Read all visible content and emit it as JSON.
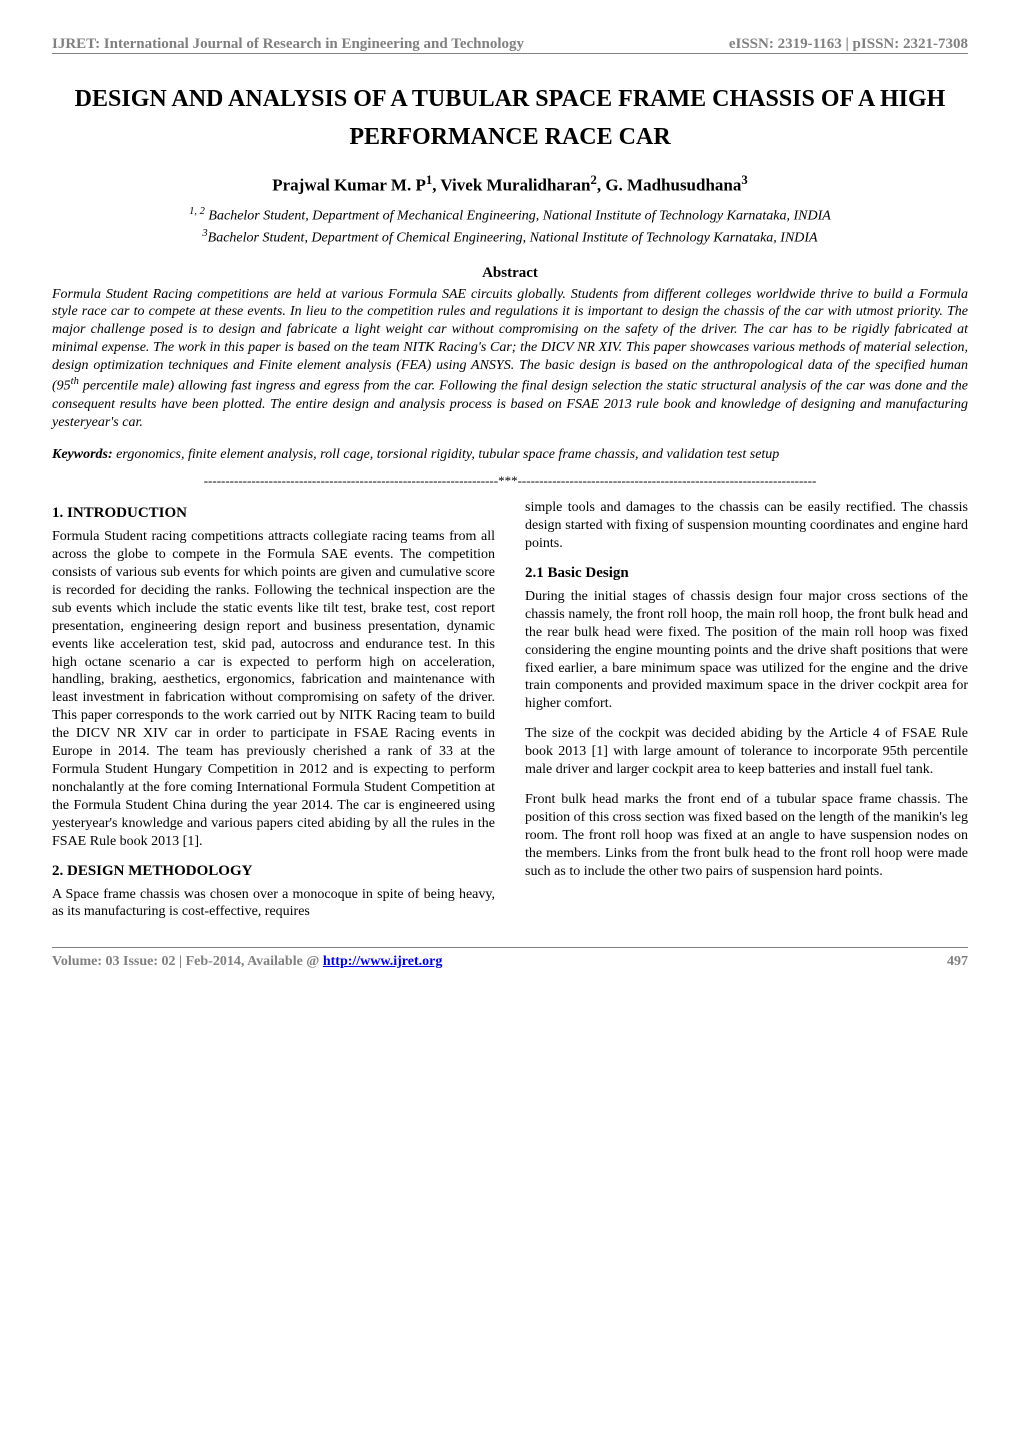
{
  "journal": {
    "name": "IJRET: International Journal of Research in Engineering and Technology",
    "issn": "eISSN: 2319-1163 | pISSN: 2321-7308",
    "header_color": "#808080",
    "header_fontsize": 15
  },
  "paper": {
    "title": "DESIGN AND ANALYSIS OF A TUBULAR SPACE FRAME CHASSIS OF A HIGH PERFORMANCE RACE CAR",
    "title_fontsize": 24,
    "authors_html": "Prajwal Kumar M. P<sup>1</sup>, Vivek Muralidharan<sup>2</sup>, G. Madhusudhana<sup>3</sup>",
    "affiliations_html": "<sup>1, 2</sup> Bachelor Student, Department of Mechanical Engineering, National Institute of Technology Karnataka, INDIA<br><sup>3</sup>Bachelor Student, Department of Chemical Engineering, National Institute of Technology Karnataka, INDIA"
  },
  "abstract": {
    "heading": "Abstract",
    "body_html": "Formula Student Racing competitions are held at various Formula SAE circuits globally. Students from different colleges worldwide thrive to build a Formula style race car to compete at these events. In lieu to the competition rules and regulations it is important to design the chassis of the car with utmost priority. The major challenge posed is to design and fabricate a light weight car without compromising on the safety of the driver. The car has to be rigidly fabricated at minimal expense. The work in this paper is based on the team NITK Racing's Car; the DICV NR XIV.  This paper showcases various methods of material selection, design optimization techniques and Finite element analysis (FEA) using ANSYS. The basic design is based on the anthropological data of the specified human (95<sup>th</sup> percentile male) allowing fast ingress and egress from the car. Following the final design selection the static structural analysis of the car was done and the consequent results have been plotted. The entire design and analysis process is based on FSAE 2013 rule book and knowledge of designing and manufacturing yesteryear's car."
  },
  "keywords": {
    "label": "Keywords:",
    "text": " ergonomics, finite element analysis, roll cage, torsional rigidity, tubular space frame chassis, and validation test setup"
  },
  "separator": "--------------------------------------------------------------------***---------------------------------------------------------------------",
  "sections": {
    "s1": {
      "heading": "1. INTRODUCTION",
      "p1": "Formula Student racing competitions attracts collegiate racing teams from all across the globe to compete in the Formula SAE events. The competition consists of various sub events for which points are given and cumulative score is recorded for deciding the ranks. Following the technical inspection are the sub events which include the static events like tilt test, brake test, cost report presentation, engineering design report and business presentation, dynamic events like acceleration test, skid pad, autocross and endurance test. In this high octane scenario a car is expected to perform high on acceleration, handling, braking, aesthetics, ergonomics, fabrication and maintenance with least investment in fabrication without compromising on safety of the driver. This paper corresponds to the work carried out by NITK Racing team to build the DICV NR XIV car in order to participate in FSAE Racing events in Europe in 2014. The team has previously cherished a rank of 33 at the Formula Student Hungary Competition in 2012 and is expecting to perform nonchalantly at the fore coming International Formula Student Competition at the Formula Student China during the year 2014. The car is engineered using yesteryear's knowledge and various papers cited abiding by all the rules in the FSAE Rule book 2013 [1]."
    },
    "s2": {
      "heading": "2. DESIGN METHODOLOGY",
      "p1": "A Space frame chassis was chosen over a monocoque in spite of being heavy, as its manufacturing is cost-effective, requires"
    },
    "col2_intro": {
      "p1": "simple tools and damages to the chassis can be easily rectified. The chassis design started with fixing of suspension mounting coordinates and engine hard points."
    },
    "s21": {
      "heading": "2.1 Basic Design",
      "p1": "During the initial stages of chassis design four major cross sections of the chassis namely, the front roll hoop, the main roll hoop, the front bulk head and the rear bulk head were fixed. The position of the main roll hoop was fixed considering the engine mounting points and the drive shaft positions that were fixed earlier, a bare minimum space was utilized for the engine and the drive train components and provided maximum space in the driver cockpit area for higher comfort.",
      "p2": "The size of the cockpit was decided abiding by the Article 4 of FSAE Rule book 2013 [1] with large amount of tolerance to incorporate 95th percentile male driver and larger cockpit area to keep batteries and install fuel tank.",
      "p3": "Front bulk head marks the front end of a tubular space frame chassis. The position of this cross section was fixed based on the length of the manikin's leg room. The front roll hoop was fixed at an angle to have suspension nodes on the members. Links from the front bulk head to the front roll hoop were made such as to include the other two pairs of suspension hard points."
    }
  },
  "footer": {
    "issue_text": "Volume: 03 Issue: 02 | Feb-2014, Available @ ",
    "url_text": "http://www.ijret.org",
    "page_number": "497",
    "color": "#808080",
    "link_color": "#0000ee"
  },
  "style": {
    "body_font": "Times New Roman",
    "body_fontsize": 14,
    "background_color": "#ffffff",
    "text_color": "#000000",
    "line_height": 1.28,
    "column_gap": 30
  }
}
